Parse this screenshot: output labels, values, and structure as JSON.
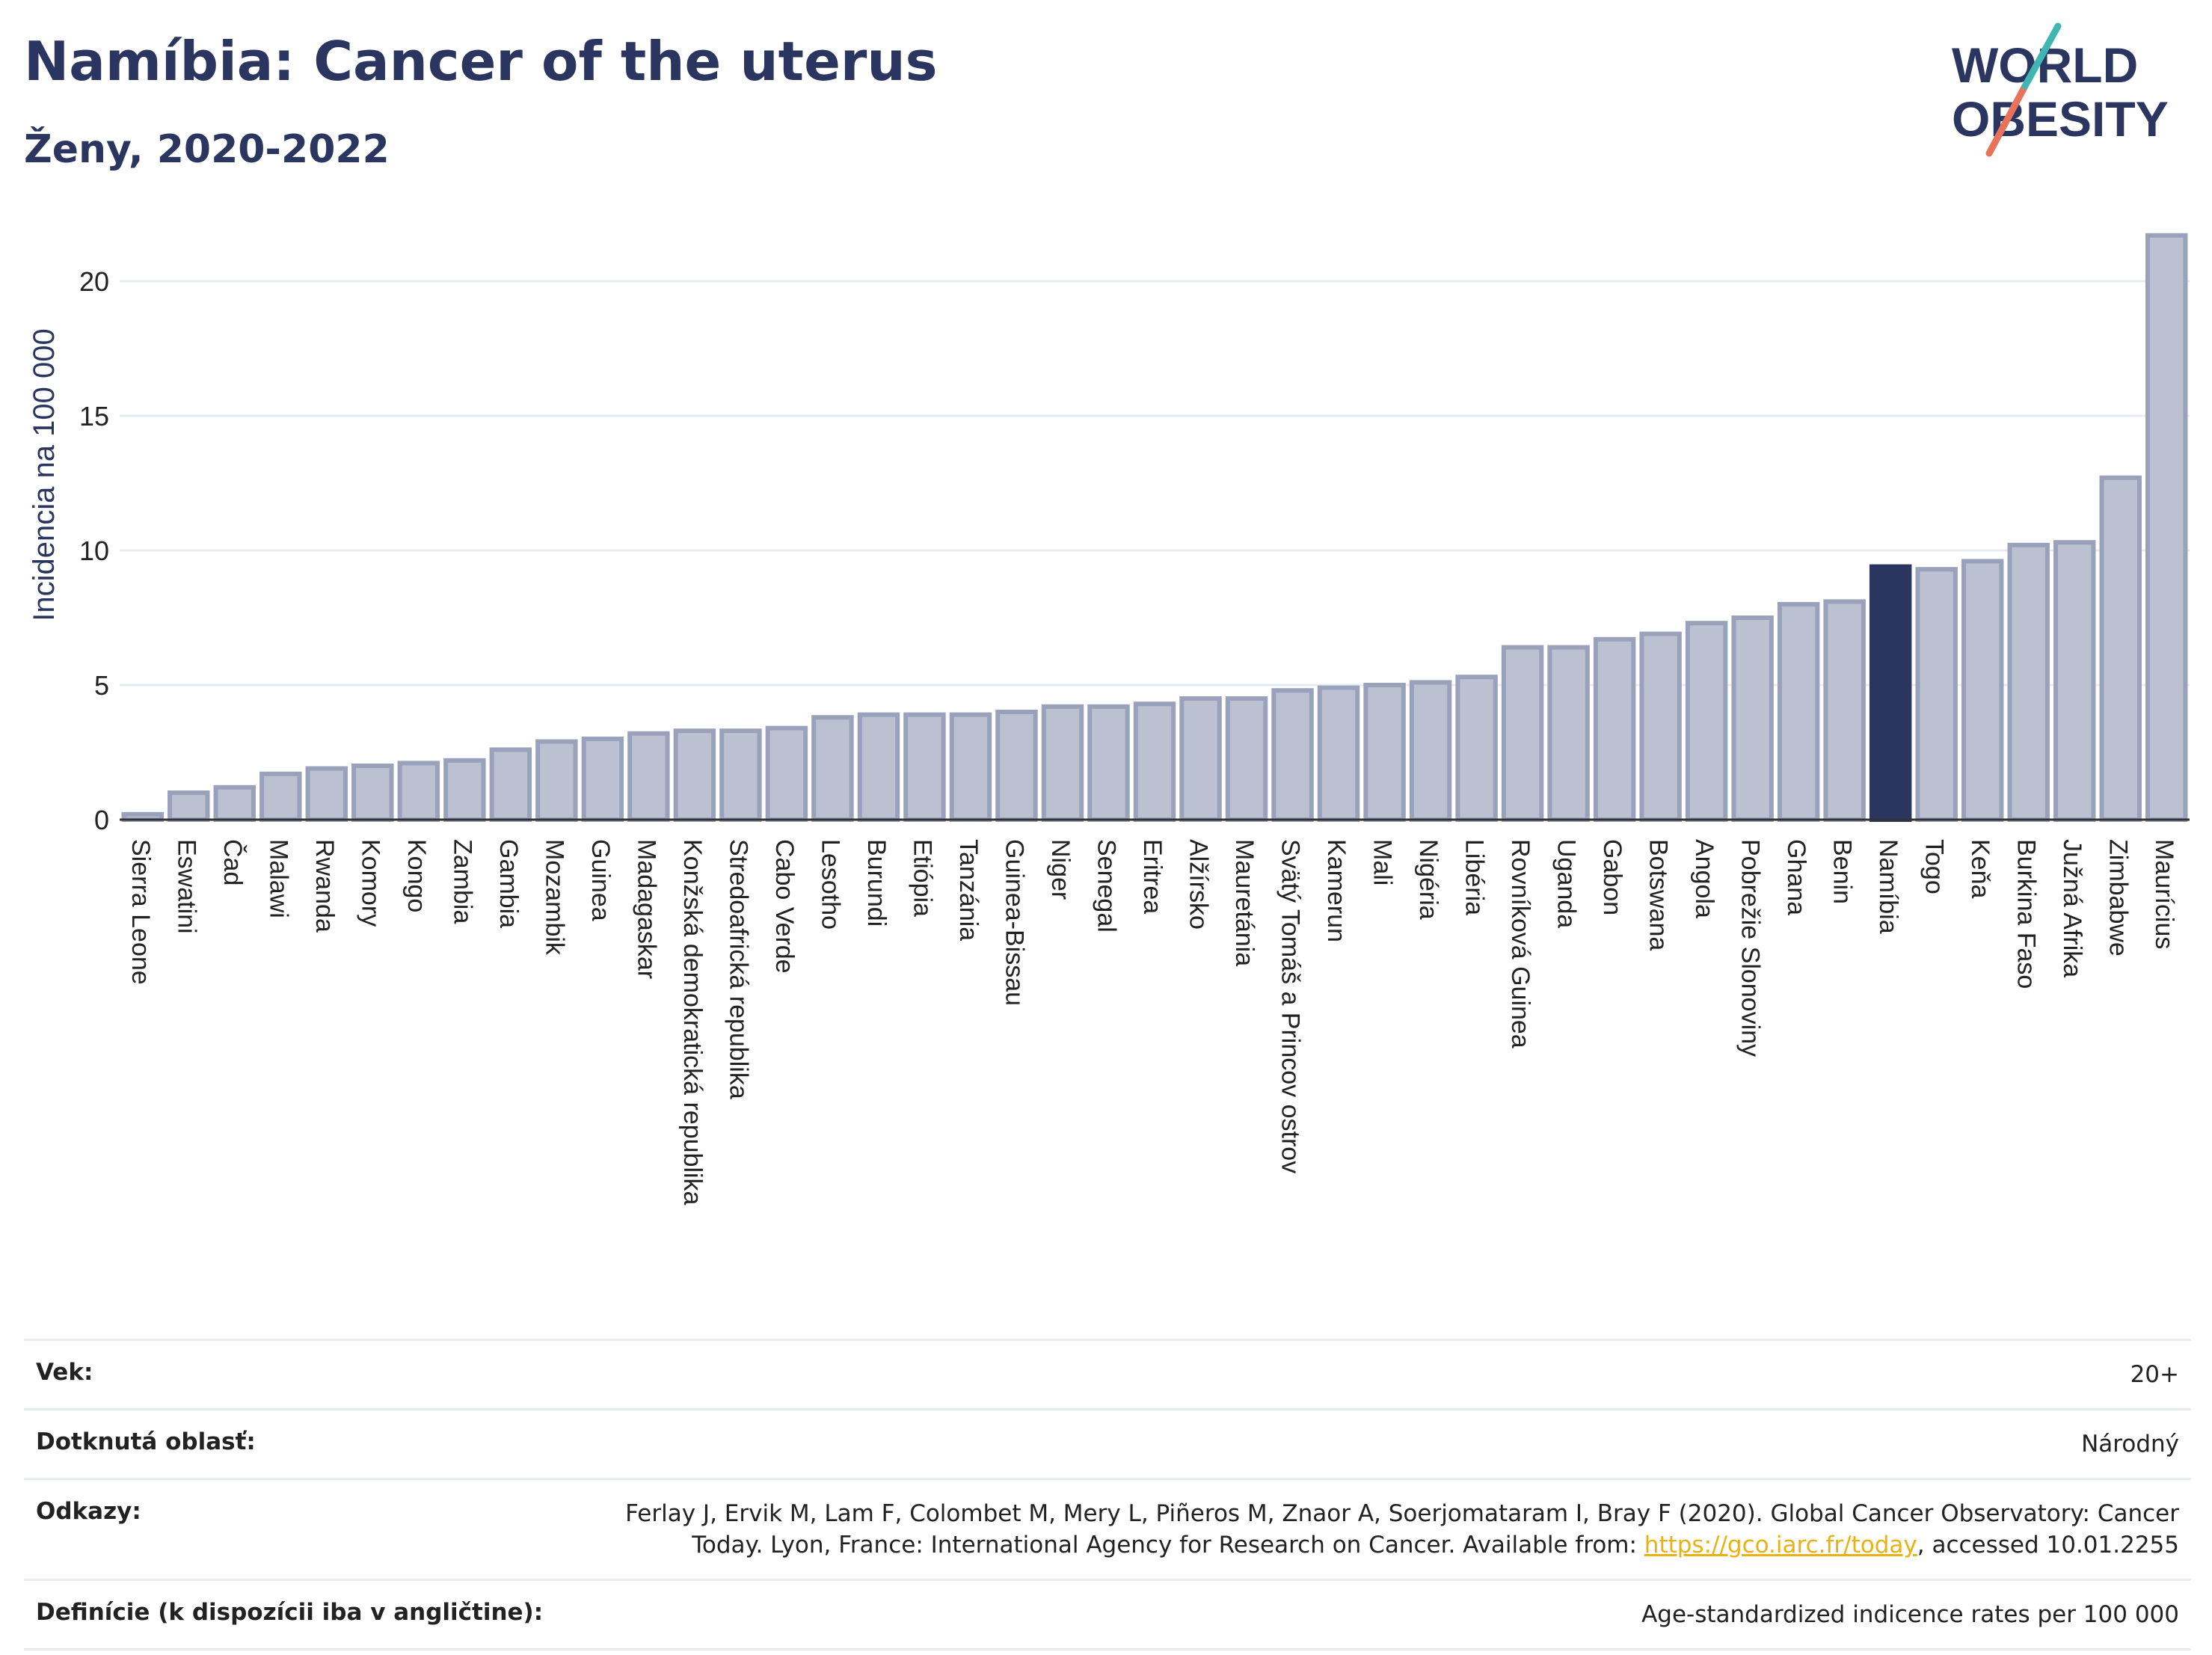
{
  "header": {
    "title": "Namíbia: Cancer of the uterus",
    "subtitle": "Ženy, 2020-2022"
  },
  "logo": {
    "line1": "WORLD",
    "line2": "OBESITY"
  },
  "colors": {
    "bar": "#bcc1d1",
    "bar_border": "#9aa1bb",
    "highlight": "#2b3660",
    "grid": "#e6ecf0"
  },
  "chart_data": {
    "type": "bar",
    "ylabel": "Incidencia na 100 000",
    "ylim": [
      0,
      22
    ],
    "yticks": [
      0,
      5,
      10,
      15,
      20
    ],
    "highlight": "Namíbia",
    "categories": [
      "Sierra Leone",
      "Eswatini",
      "Čad",
      "Malawi",
      "Rwanda",
      "Komory",
      "Kongo",
      "Zambia",
      "Gambia",
      "Mozambik",
      "Guinea",
      "Madagaskar",
      "Konžská demokratická republika",
      "Stredoafrická republika",
      "Cabo Verde",
      "Lesotho",
      "Burundi",
      "Etiópia",
      "Tanzánia",
      "Guinea-Bissau",
      "Niger",
      "Senegal",
      "Eritrea",
      "Alžírsko",
      "Mauretánia",
      "Svätý Tomáš a Princov ostrov",
      "Kamerun",
      "Mali",
      "Nigéria",
      "Libéria",
      "Rovníková Guinea",
      "Uganda",
      "Gabon",
      "Botswana",
      "Angola",
      "Pobrežie Slonoviny",
      "Ghana",
      "Benin",
      "Namíbia",
      "Togo",
      "Keňa",
      "Burkina Faso",
      "Južná Afrika",
      "Zimbabwe",
      "Maurícius"
    ],
    "values": [
      0.2,
      1.0,
      1.2,
      1.7,
      1.9,
      2.0,
      2.1,
      2.2,
      2.6,
      2.9,
      3.0,
      3.2,
      3.3,
      3.3,
      3.4,
      3.8,
      3.9,
      3.9,
      3.9,
      4.0,
      4.2,
      4.2,
      4.3,
      4.5,
      4.5,
      4.8,
      4.9,
      5.0,
      5.1,
      5.3,
      6.4,
      6.4,
      6.7,
      6.9,
      7.3,
      7.5,
      8.0,
      8.1,
      9.4,
      9.3,
      9.6,
      10.2,
      10.3,
      12.7,
      21.7
    ]
  },
  "info": {
    "age_label": "Vek:",
    "age_value": "20+",
    "area_label": "Dotknutá oblasť:",
    "area_value": "Národný",
    "refs_label": "Odkazy:",
    "refs_text1": "Ferlay J, Ervik M, Lam F, Colombet M, Mery L, Piñeros M, Znaor A, Soerjomataram I, Bray F (2020). Global Cancer Observatory: Cancer Today. Lyon, France: International Agency for Research on Cancer. Available from: ",
    "refs_link": "https://gco.iarc.fr/today",
    "refs_text2": ", accessed 10.01.2255",
    "def_label": "Definície (k dispozícii iba v angličtine):",
    "def_value": "Age-standardized indicence rates per 100 000"
  }
}
